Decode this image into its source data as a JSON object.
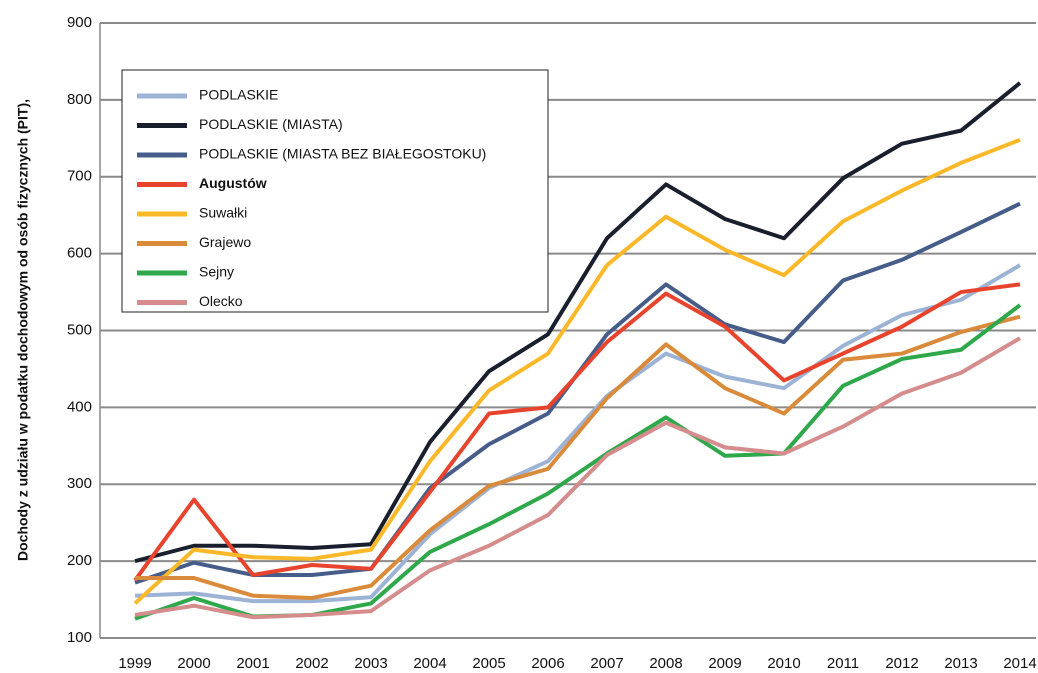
{
  "chart_data": {
    "type": "line",
    "y_label": "Dochody z udziału w podatku dochodowym od osób fizycznych (PIT),",
    "categories": [
      "1999",
      "2000",
      "2001",
      "2002",
      "2003",
      "2004",
      "2005",
      "2006",
      "2007",
      "2008",
      "2009",
      "2010",
      "2011",
      "2012",
      "2013",
      "2014"
    ],
    "ylim": [
      100,
      900
    ],
    "yticks": [
      100,
      200,
      300,
      400,
      500,
      600,
      700,
      800,
      900
    ],
    "grid": true,
    "series": [
      {
        "name": "PODLASKIE",
        "color": "#9db3d6",
        "values": [
          155,
          158,
          148,
          148,
          153,
          235,
          295,
          330,
          415,
          470,
          440,
          425,
          480,
          520,
          540,
          585
        ]
      },
      {
        "name": "PODLASKIE (MIASTA)",
        "color": "#1a1f2e",
        "values": [
          200,
          220,
          220,
          217,
          222,
          355,
          447,
          495,
          620,
          690,
          645,
          620,
          698,
          743,
          760,
          822
        ]
      },
      {
        "name": "PODLASKIE (MIASTA BEZ BIAŁEGOSTOKU)",
        "color": "#465d8a",
        "values": [
          172,
          198,
          182,
          182,
          190,
          295,
          352,
          392,
          495,
          560,
          508,
          485,
          565,
          592,
          628,
          665
        ]
      },
      {
        "name": "Augustów",
        "color": "#e8432d",
        "values": [
          175,
          280,
          182,
          195,
          190,
          290,
          392,
          400,
          485,
          548,
          505,
          435,
          470,
          505,
          550,
          560
        ]
      },
      {
        "name": "Suwałki",
        "color": "#fbb829",
        "values": [
          145,
          215,
          205,
          203,
          215,
          330,
          422,
          470,
          585,
          648,
          605,
          572,
          642,
          682,
          718,
          748
        ]
      },
      {
        "name": "Grajewo",
        "color": "#d98a3b",
        "values": [
          178,
          178,
          155,
          152,
          168,
          240,
          298,
          320,
          412,
          482,
          425,
          392,
          462,
          470,
          498,
          518
        ]
      },
      {
        "name": "Sejny",
        "color": "#2ea84a",
        "values": [
          125,
          152,
          128,
          130,
          145,
          212,
          248,
          288,
          340,
          387,
          337,
          340,
          428,
          463,
          475,
          533
        ]
      },
      {
        "name": "Olecko",
        "color": "#d48c8c",
        "values": [
          130,
          142,
          127,
          130,
          135,
          188,
          220,
          260,
          338,
          380,
          348,
          340,
          375,
          418,
          445,
          490
        ]
      }
    ]
  }
}
